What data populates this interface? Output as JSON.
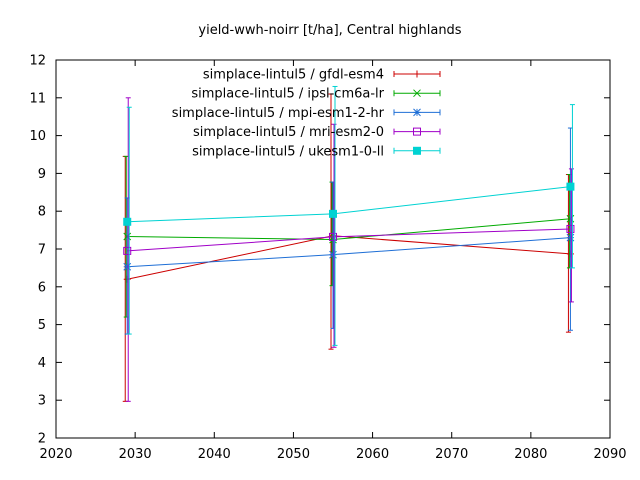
{
  "chart_data": {
    "type": "line",
    "title": "yield-wwh-noirr [t/ha], Central highlands",
    "xlabel": "",
    "ylabel": "",
    "xlim": [
      2020,
      2090
    ],
    "ylim": [
      2,
      12
    ],
    "x_ticks": [
      "2020",
      "2030",
      "2040",
      "2050",
      "2060",
      "2070",
      "2080",
      "2090"
    ],
    "y_ticks": [
      "2",
      "3",
      "4",
      "5",
      "6",
      "7",
      "8",
      "9",
      "10",
      "11",
      "12"
    ],
    "grid": false,
    "legend_position": "top-left",
    "x": [
      2029,
      2055,
      2085
    ],
    "series": [
      {
        "name": "simplace-lintul5 / gfdl-esm4",
        "color": "#cc0000",
        "marker": "plus",
        "values": [
          6.2,
          7.35,
          6.87
        ],
        "err_low": [
          2.97,
          4.35,
          4.8
        ],
        "err_high": [
          9.45,
          11.1,
          8.97
        ]
      },
      {
        "name": "simplace-lintul5 / ipsl-cm6a-lr",
        "color": "#00aa00",
        "marker": "cross",
        "values": [
          7.33,
          7.25,
          7.8
        ],
        "err_low": [
          5.2,
          6.03,
          6.5
        ],
        "err_high": [
          9.45,
          8.77,
          8.97
        ]
      },
      {
        "name": "simplace-lintul5 / mpi-esm1-2-hr",
        "color": "#1f6fd6",
        "marker": "star",
        "values": [
          6.53,
          6.85,
          7.3
        ],
        "err_low": [
          4.75,
          4.9,
          4.85
        ],
        "err_high": [
          8.35,
          8.77,
          10.2
        ]
      },
      {
        "name": "simplace-lintul5 / mri-esm2-0",
        "color": "#a000c8",
        "marker": "open-square",
        "values": [
          6.95,
          7.32,
          7.53
        ],
        "err_low": [
          2.97,
          4.4,
          5.6
        ],
        "err_high": [
          11.0,
          10.3,
          9.12
        ]
      },
      {
        "name": "simplace-lintul5 / ukesm1-0-ll",
        "color": "#00d2d2",
        "marker": "filled-square",
        "values": [
          7.72,
          7.93,
          8.65
        ],
        "err_low": [
          4.75,
          4.45,
          6.5
        ],
        "err_high": [
          10.75,
          11.3,
          10.82
        ]
      }
    ]
  }
}
